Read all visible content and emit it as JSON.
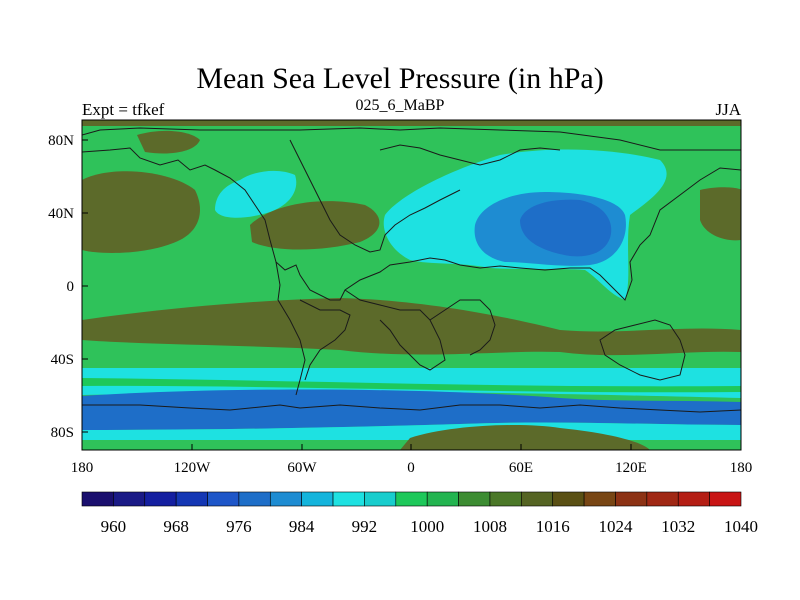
{
  "title": "Mean Sea Level Pressure (in hPa)",
  "subtitle_left": "Expt = tfkef",
  "subtitle_center": "025_6_MaBP",
  "subtitle_right": "JJA",
  "lat_ticks": [
    "80N",
    "40N",
    "0",
    "40S",
    "80S"
  ],
  "lon_ticks": [
    "180",
    "120W",
    "60W",
    "0",
    "60E",
    "120E",
    "180"
  ],
  "colorbar": {
    "colors": [
      "#1a0f6e",
      "#1a1a86",
      "#141fa0",
      "#1437b4",
      "#1e56c8",
      "#1e6ec8",
      "#1e8cd2",
      "#14b4dc",
      "#1ee1e1",
      "#19cdcd",
      "#1ec85a",
      "#23b450",
      "#3c8c32",
      "#4b7828",
      "#556423",
      "#5a5014",
      "#784614",
      "#8c3214",
      "#a02814",
      "#b41e14",
      "#c81414"
    ],
    "labels": [
      "960",
      "968",
      "976",
      "984",
      "992",
      "1000",
      "1008",
      "1016",
      "1024",
      "1032",
      "1040"
    ]
  },
  "legend_colors": {
    "land_high": "#2fc25a",
    "high_pressure": "#5c6a2a",
    "low_light": "#1ee1e1",
    "low_mid": "#1e8cd2",
    "low_deep": "#1e6ec8",
    "coast": "#1a1a1a"
  }
}
